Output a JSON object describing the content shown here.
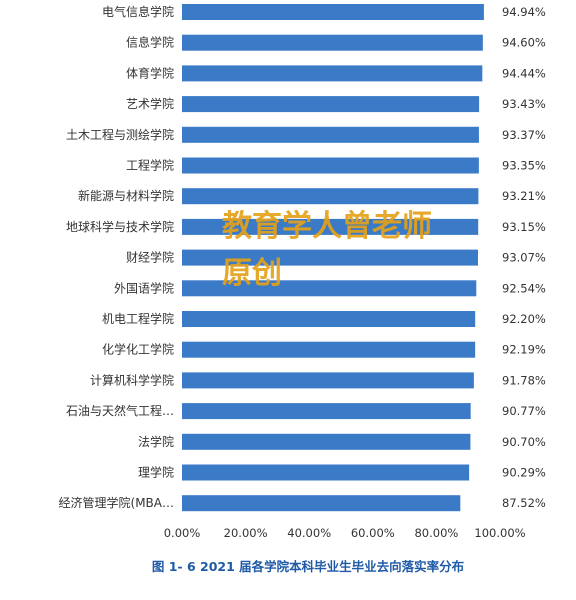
{
  "chart_data": {
    "type": "bar",
    "orientation": "horizontal",
    "caption": "图 1- 6    2021 届各学院本科毕业生毕业去向落实率分布",
    "categories": [
      "电气信息学院",
      "信息学院",
      "体育学院",
      "艺术学院",
      "土木工程与测绘学院",
      "工程学院",
      "新能源与材料学院",
      "地球科学与技术学院",
      "财经学院",
      "外国语学院",
      "机电工程学院",
      "化学化工学院",
      "计算机科学学院",
      "石油与天然气工程…",
      "法学院",
      "理学院",
      "经济管理学院(MBA…"
    ],
    "values": [
      94.94,
      94.6,
      94.44,
      93.43,
      93.37,
      93.35,
      93.21,
      93.15,
      93.07,
      92.54,
      92.2,
      92.19,
      91.78,
      90.77,
      90.7,
      90.29,
      87.52
    ],
    "value_labels": [
      "94.94%",
      "94.60%",
      "94.44%",
      "93.43%",
      "93.37%",
      "93.35%",
      "93.21%",
      "93.15%",
      "93.07%",
      "92.54%",
      "92.20%",
      "92.19%",
      "91.78%",
      "90.77%",
      "90.70%",
      "90.29%",
      "87.52%"
    ],
    "xlim": [
      0,
      100
    ],
    "x_ticks": [
      "0.00%",
      "20.00%",
      "40.00%",
      "60.00%",
      "80.00%",
      "100.00%"
    ],
    "grid": false,
    "legend": "none",
    "bar_color": "#3a7ac7",
    "caption_color": "#1f5aa6"
  },
  "watermark": {
    "line1": "教育学人曾老师",
    "line2": "原创",
    "color": "#e5a21a"
  }
}
